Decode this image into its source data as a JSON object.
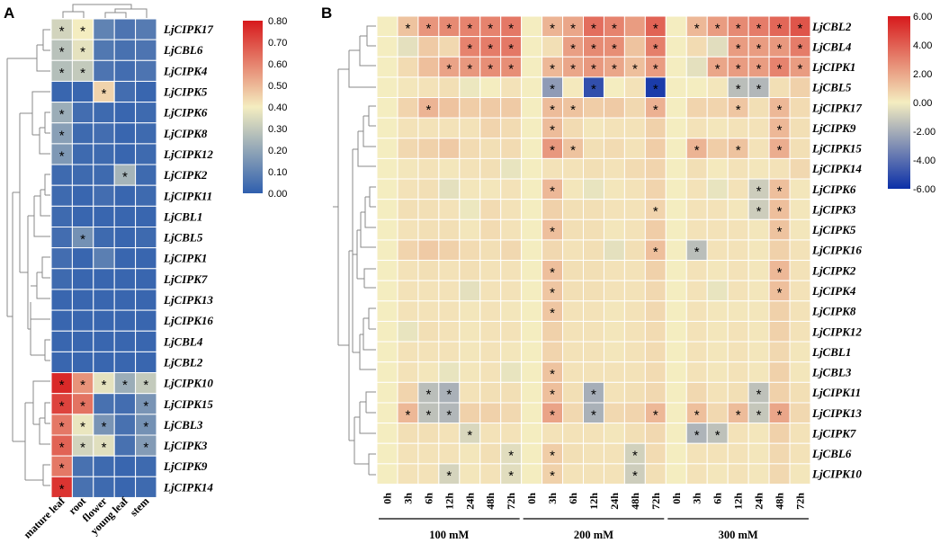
{
  "chart_data": [
    {
      "type": "heatmap",
      "panel_label": "A",
      "title": "",
      "columns": [
        "mature leaf",
        "root",
        "flower",
        "young leaf",
        "stem"
      ],
      "rows": [
        "LjCIPK17",
        "LjCBL6",
        "LjCIPK4",
        "LjCIPK5",
        "LjCIPK6",
        "LjCIPK8",
        "LjCIPK12",
        "LjCIPK2",
        "LjCIPK11",
        "LjCBL1",
        "LjCBL5",
        "LjCIPK1",
        "LjCIPK7",
        "LjCIPK13",
        "LjCIPK16",
        "LjCBL4",
        "LjCBL2",
        "LjCIPK10",
        "LjCIPK15",
        "LjCBL3",
        "LjCIPK3",
        "LjCIPK9",
        "LjCIPK14"
      ],
      "values": [
        [
          0.33,
          0.4,
          0.1,
          0.06,
          0.08
        ],
        [
          0.28,
          0.37,
          0.07,
          0.05,
          0.06
        ],
        [
          0.27,
          0.3,
          0.06,
          0.04,
          0.06
        ],
        [
          0.02,
          0.02,
          0.45,
          0.04,
          0.02
        ],
        [
          0.22,
          0.04,
          0.03,
          0.02,
          0.03
        ],
        [
          0.18,
          0.03,
          0.04,
          0.02,
          0.03
        ],
        [
          0.16,
          0.03,
          0.03,
          0.02,
          0.03
        ],
        [
          0.03,
          0.03,
          0.03,
          0.24,
          0.03
        ],
        [
          0.03,
          0.02,
          0.04,
          0.02,
          0.03
        ],
        [
          0.03,
          0.02,
          0.02,
          0.02,
          0.02
        ],
        [
          0.04,
          0.14,
          0.03,
          0.02,
          0.03
        ],
        [
          0.04,
          0.02,
          0.09,
          0.02,
          0.02
        ],
        [
          0.03,
          0.02,
          0.02,
          0.02,
          0.02
        ],
        [
          0.02,
          0.02,
          0.02,
          0.02,
          0.02
        ],
        [
          0.02,
          0.02,
          0.02,
          0.02,
          0.02
        ],
        [
          0.02,
          0.02,
          0.02,
          0.02,
          0.02
        ],
        [
          0.02,
          0.02,
          0.02,
          0.02,
          0.02
        ],
        [
          0.77,
          0.57,
          0.37,
          0.22,
          0.3
        ],
        [
          0.72,
          0.63,
          0.05,
          0.04,
          0.15
        ],
        [
          0.62,
          0.38,
          0.15,
          0.05,
          0.14
        ],
        [
          0.66,
          0.33,
          0.36,
          0.05,
          0.17
        ],
        [
          0.62,
          0.05,
          0.03,
          0.02,
          0.03
        ],
        [
          0.75,
          0.05,
          0.03,
          0.02,
          0.03
        ]
      ],
      "significant": [
        [
          0,
          0
        ],
        [
          0,
          1
        ],
        [
          1,
          0
        ],
        [
          1,
          1
        ],
        [
          2,
          0
        ],
        [
          2,
          1
        ],
        [
          3,
          2
        ],
        [
          4,
          0
        ],
        [
          5,
          0
        ],
        [
          6,
          0
        ],
        [
          7,
          3
        ],
        [
          10,
          1
        ],
        [
          17,
          0
        ],
        [
          17,
          1
        ],
        [
          17,
          2
        ],
        [
          17,
          3
        ],
        [
          17,
          4
        ],
        [
          18,
          0
        ],
        [
          18,
          1
        ],
        [
          18,
          4
        ],
        [
          19,
          0
        ],
        [
          19,
          1
        ],
        [
          19,
          2
        ],
        [
          19,
          4
        ],
        [
          20,
          0
        ],
        [
          20,
          1
        ],
        [
          20,
          2
        ],
        [
          20,
          4
        ],
        [
          21,
          0
        ],
        [
          22,
          0
        ]
      ],
      "significance_marker": "*",
      "colorbar": {
        "min": 0.0,
        "max": 0.8,
        "ticks": [
          "0.00",
          "0.10",
          "0.20",
          "0.30",
          "0.40",
          "0.50",
          "0.60",
          "0.70",
          "0.80"
        ]
      },
      "colormap": [
        "#2f5fae",
        "#f4edc0",
        "#d7191c"
      ]
    },
    {
      "type": "heatmap",
      "panel_label": "B",
      "title": "",
      "columns": [
        "0h",
        "3h",
        "6h",
        "12h",
        "24h",
        "48h",
        "72h",
        "0h",
        "3h",
        "6h",
        "12h",
        "24h",
        "48h",
        "72h",
        "0h",
        "3h",
        "6h",
        "12h",
        "24h",
        "48h",
        "72h"
      ],
      "column_groups": [
        {
          "label": "100 mM",
          "start": 0,
          "end": 6
        },
        {
          "label": "200 mM",
          "start": 7,
          "end": 13
        },
        {
          "label": "300 mM",
          "start": 14,
          "end": 20
        }
      ],
      "rows": [
        "LjCBL2",
        "LjCBL4",
        "LjCIPK1",
        "LjCBL5",
        "LjCIPK17",
        "LjCIPK9",
        "LjCIPK15",
        "LjCIPK14",
        "LjCIPK6",
        "LjCIPK3",
        "LjCIPK5",
        "LjCIPK16",
        "LjCIPK2",
        "LjCIPK4",
        "LjCIPK8",
        "LjCIPK12",
        "LjCBL1",
        "LjCBL3",
        "LjCIPK11",
        "LjCIPK13",
        "LjCIPK7",
        "LjCBL6",
        "LjCIPK10"
      ],
      "values": [
        [
          0,
          1.2,
          2.5,
          2.8,
          3.0,
          3.0,
          3.3,
          0,
          1.6,
          2.0,
          3.6,
          3.0,
          2.3,
          3.9,
          0,
          1.5,
          2.3,
          2.8,
          3.2,
          3.8,
          4.3
        ],
        [
          0,
          -0.4,
          1.0,
          0.6,
          3.0,
          3.2,
          3.3,
          0,
          0.4,
          2.2,
          2.8,
          2.7,
          1.2,
          3.1,
          0,
          0.5,
          -0.5,
          2.3,
          2.3,
          2.4,
          3.2
        ],
        [
          0,
          0.5,
          1.3,
          2.1,
          2.4,
          2.7,
          2.7,
          0,
          1.5,
          2.0,
          2.4,
          2.0,
          1.3,
          2.3,
          0,
          -0.4,
          2.0,
          2.3,
          2.3,
          3.0,
          2.3
        ],
        [
          0,
          0.2,
          0.3,
          0.4,
          -0.2,
          0.0,
          0.3,
          0,
          -2.6,
          0.1,
          -5.0,
          0.0,
          0.3,
          -5.6,
          0,
          0.0,
          0.2,
          -1.5,
          -1.7,
          0.4,
          0.8
        ],
        [
          0,
          0.7,
          1.6,
          1.2,
          0.9,
          1.0,
          1.0,
          0,
          1.4,
          1.2,
          0.9,
          1.0,
          0.6,
          1.7,
          0,
          0.7,
          0.7,
          1.1,
          0.4,
          1.5,
          0.5
        ],
        [
          0,
          0.3,
          0.3,
          0.3,
          0.3,
          0.7,
          0.5,
          0,
          1.4,
          0.5,
          0.2,
          0.3,
          0.3,
          0.8,
          0,
          0.3,
          0.2,
          0.3,
          0.3,
          1.5,
          0.4
        ],
        [
          0,
          0.6,
          0.8,
          1.0,
          0.5,
          0.4,
          0.5,
          0,
          2.4,
          1.2,
          0.4,
          0.5,
          0.3,
          0.9,
          0,
          1.6,
          0.9,
          1.2,
          0.3,
          1.8,
          0.4
        ],
        [
          0,
          0.2,
          0.3,
          0.2,
          0.3,
          0.4,
          -0.3,
          0,
          0.3,
          0.3,
          0.4,
          0.3,
          0.5,
          0.7,
          0,
          0.4,
          0.1,
          0.3,
          0.2,
          0.3,
          0.6
        ],
        [
          0,
          0.3,
          0.4,
          -0.4,
          0.2,
          0.2,
          0.3,
          0,
          1.5,
          0.2,
          -0.3,
          0.2,
          0.3,
          0.7,
          0,
          0.3,
          -0.3,
          0.3,
          -1.0,
          1.3,
          0.2
        ],
        [
          0,
          0.4,
          0.4,
          0.3,
          -0.2,
          0.5,
          0.3,
          0,
          0.8,
          0.4,
          0.4,
          0.3,
          0.3,
          0.7,
          0,
          0.3,
          0.3,
          0.2,
          -1.0,
          1.3,
          0.2
        ],
        [
          0,
          0.3,
          0.4,
          0.4,
          0.2,
          0.5,
          0.3,
          0,
          1.3,
          0.4,
          0.4,
          0.2,
          0.3,
          0.9,
          0,
          0.3,
          0.3,
          0.3,
          0.2,
          1.2,
          0.2
        ],
        [
          0,
          0.7,
          1.0,
          0.8,
          0.5,
          0.4,
          0.6,
          0,
          0.6,
          0.3,
          0.4,
          -0.4,
          0.4,
          1.3,
          0,
          -1.5,
          0.3,
          0.3,
          0.2,
          0.8,
          0.3
        ],
        [
          0,
          0.3,
          0.4,
          0.3,
          0.4,
          0.3,
          0.3,
          0,
          1.3,
          0.4,
          0.4,
          0.3,
          0.3,
          0.8,
          0,
          0.3,
          0.2,
          0.3,
          0.2,
          1.5,
          0.3
        ],
        [
          0,
          0.3,
          0.3,
          0.3,
          -0.4,
          0.3,
          0.3,
          0,
          1.1,
          0.4,
          0.4,
          0.3,
          0.3,
          0.6,
          0,
          0.3,
          -0.3,
          0.3,
          0.2,
          1.3,
          0.3
        ],
        [
          0,
          0.3,
          0.3,
          0.3,
          0.2,
          0.3,
          0.2,
          0,
          1.1,
          0.3,
          0.3,
          0.2,
          0.3,
          0.6,
          0,
          0.3,
          0.2,
          0.2,
          0.2,
          0.8,
          0.3
        ],
        [
          0,
          -0.3,
          0.4,
          0.3,
          0.2,
          0.3,
          0.3,
          0,
          0.8,
          0.3,
          0.3,
          0.2,
          0.3,
          0.5,
          0,
          0.3,
          0.2,
          0.3,
          0.2,
          0.8,
          0.3
        ],
        [
          0,
          0.3,
          0.3,
          0.3,
          0.2,
          0.3,
          0.2,
          0,
          0.7,
          0.3,
          0.3,
          0.2,
          0.3,
          0.5,
          0,
          0.3,
          0.2,
          0.3,
          0.2,
          0.6,
          0.2
        ],
        [
          0,
          0.3,
          0.2,
          -0.3,
          0.2,
          0.3,
          -0.3,
          0,
          1.2,
          0.3,
          0.3,
          0.3,
          0.3,
          0.5,
          0,
          0.3,
          0.2,
          0.3,
          0.2,
          0.8,
          0.2
        ],
        [
          0,
          0.7,
          -1.5,
          -1.9,
          0.3,
          0.4,
          0.4,
          0,
          1.3,
          0.4,
          -2.0,
          0.3,
          0.4,
          0.6,
          0,
          0.6,
          0.3,
          0.4,
          -1.4,
          0.8,
          0.4
        ],
        [
          0,
          1.5,
          -1.4,
          -1.7,
          0.8,
          0.8,
          0.6,
          0,
          2.1,
          0.6,
          -1.9,
          0.6,
          0.7,
          1.5,
          0,
          1.3,
          0.6,
          1.4,
          -1.2,
          2.0,
          0.6
        ],
        [
          0,
          0.4,
          0.4,
          0.3,
          -0.7,
          0.3,
          0.3,
          0,
          0.3,
          0.3,
          0.3,
          0.2,
          0.4,
          0.6,
          0,
          -1.8,
          -1.4,
          0.3,
          0.2,
          0.8,
          0.3
        ],
        [
          0,
          0.3,
          0.3,
          0.3,
          0.2,
          0.4,
          -0.5,
          0,
          0.9,
          0.4,
          0.3,
          0.3,
          -0.9,
          0.5,
          0,
          0.3,
          0.3,
          0.3,
          0.2,
          0.6,
          0.3
        ],
        [
          0,
          0.3,
          0.3,
          -0.8,
          0.2,
          0.3,
          -0.5,
          0,
          0.8,
          0.3,
          0.3,
          0.3,
          -1.0,
          0.4,
          0,
          0.3,
          0.2,
          0.3,
          0.2,
          0.6,
          0.2
        ]
      ],
      "significant": [
        [
          0,
          1
        ],
        [
          0,
          2
        ],
        [
          0,
          3
        ],
        [
          0,
          4
        ],
        [
          0,
          5
        ],
        [
          0,
          6
        ],
        [
          0,
          8
        ],
        [
          0,
          9
        ],
        [
          0,
          10
        ],
        [
          0,
          11
        ],
        [
          0,
          13
        ],
        [
          0,
          15
        ],
        [
          0,
          16
        ],
        [
          0,
          17
        ],
        [
          0,
          18
        ],
        [
          0,
          19
        ],
        [
          0,
          20
        ],
        [
          1,
          4
        ],
        [
          1,
          5
        ],
        [
          1,
          6
        ],
        [
          1,
          9
        ],
        [
          1,
          10
        ],
        [
          1,
          11
        ],
        [
          1,
          13
        ],
        [
          1,
          17
        ],
        [
          1,
          18
        ],
        [
          1,
          19
        ],
        [
          1,
          20
        ],
        [
          2,
          3
        ],
        [
          2,
          4
        ],
        [
          2,
          5
        ],
        [
          2,
          6
        ],
        [
          2,
          8
        ],
        [
          2,
          9
        ],
        [
          2,
          10
        ],
        [
          2,
          11
        ],
        [
          2,
          12
        ],
        [
          2,
          13
        ],
        [
          2,
          16
        ],
        [
          2,
          17
        ],
        [
          2,
          18
        ],
        [
          2,
          19
        ],
        [
          2,
          20
        ],
        [
          3,
          8
        ],
        [
          3,
          10
        ],
        [
          3,
          13
        ],
        [
          3,
          17
        ],
        [
          3,
          18
        ],
        [
          4,
          2
        ],
        [
          4,
          8
        ],
        [
          4,
          9
        ],
        [
          4,
          13
        ],
        [
          4,
          17
        ],
        [
          4,
          19
        ],
        [
          5,
          8
        ],
        [
          5,
          19
        ],
        [
          6,
          8
        ],
        [
          6,
          9
        ],
        [
          6,
          15
        ],
        [
          6,
          17
        ],
        [
          6,
          19
        ],
        [
          8,
          8
        ],
        [
          8,
          18
        ],
        [
          8,
          19
        ],
        [
          9,
          13
        ],
        [
          9,
          18
        ],
        [
          9,
          19
        ],
        [
          10,
          8
        ],
        [
          10,
          19
        ],
        [
          11,
          13
        ],
        [
          11,
          15
        ],
        [
          12,
          8
        ],
        [
          12,
          19
        ],
        [
          13,
          8
        ],
        [
          13,
          19
        ],
        [
          14,
          8
        ],
        [
          17,
          8
        ],
        [
          18,
          2
        ],
        [
          18,
          3
        ],
        [
          18,
          8
        ],
        [
          18,
          10
        ],
        [
          18,
          18
        ],
        [
          19,
          1
        ],
        [
          19,
          2
        ],
        [
          19,
          3
        ],
        [
          19,
          8
        ],
        [
          19,
          10
        ],
        [
          19,
          13
        ],
        [
          19,
          15
        ],
        [
          19,
          17
        ],
        [
          19,
          18
        ],
        [
          19,
          19
        ],
        [
          20,
          4
        ],
        [
          20,
          15
        ],
        [
          20,
          16
        ],
        [
          21,
          6
        ],
        [
          21,
          8
        ],
        [
          21,
          12
        ],
        [
          22,
          3
        ],
        [
          22,
          6
        ],
        [
          22,
          8
        ],
        [
          22,
          12
        ]
      ],
      "significance_marker": "*",
      "colorbar": {
        "min": -6.0,
        "max": 6.0,
        "ticks": [
          "6.00",
          "4.00",
          "2.00",
          "0.00",
          "-2.00",
          "-4.00",
          "-6.00"
        ]
      },
      "colormap": [
        "#0b2fa8",
        "#f4edc0",
        "#d7191c"
      ]
    }
  ]
}
